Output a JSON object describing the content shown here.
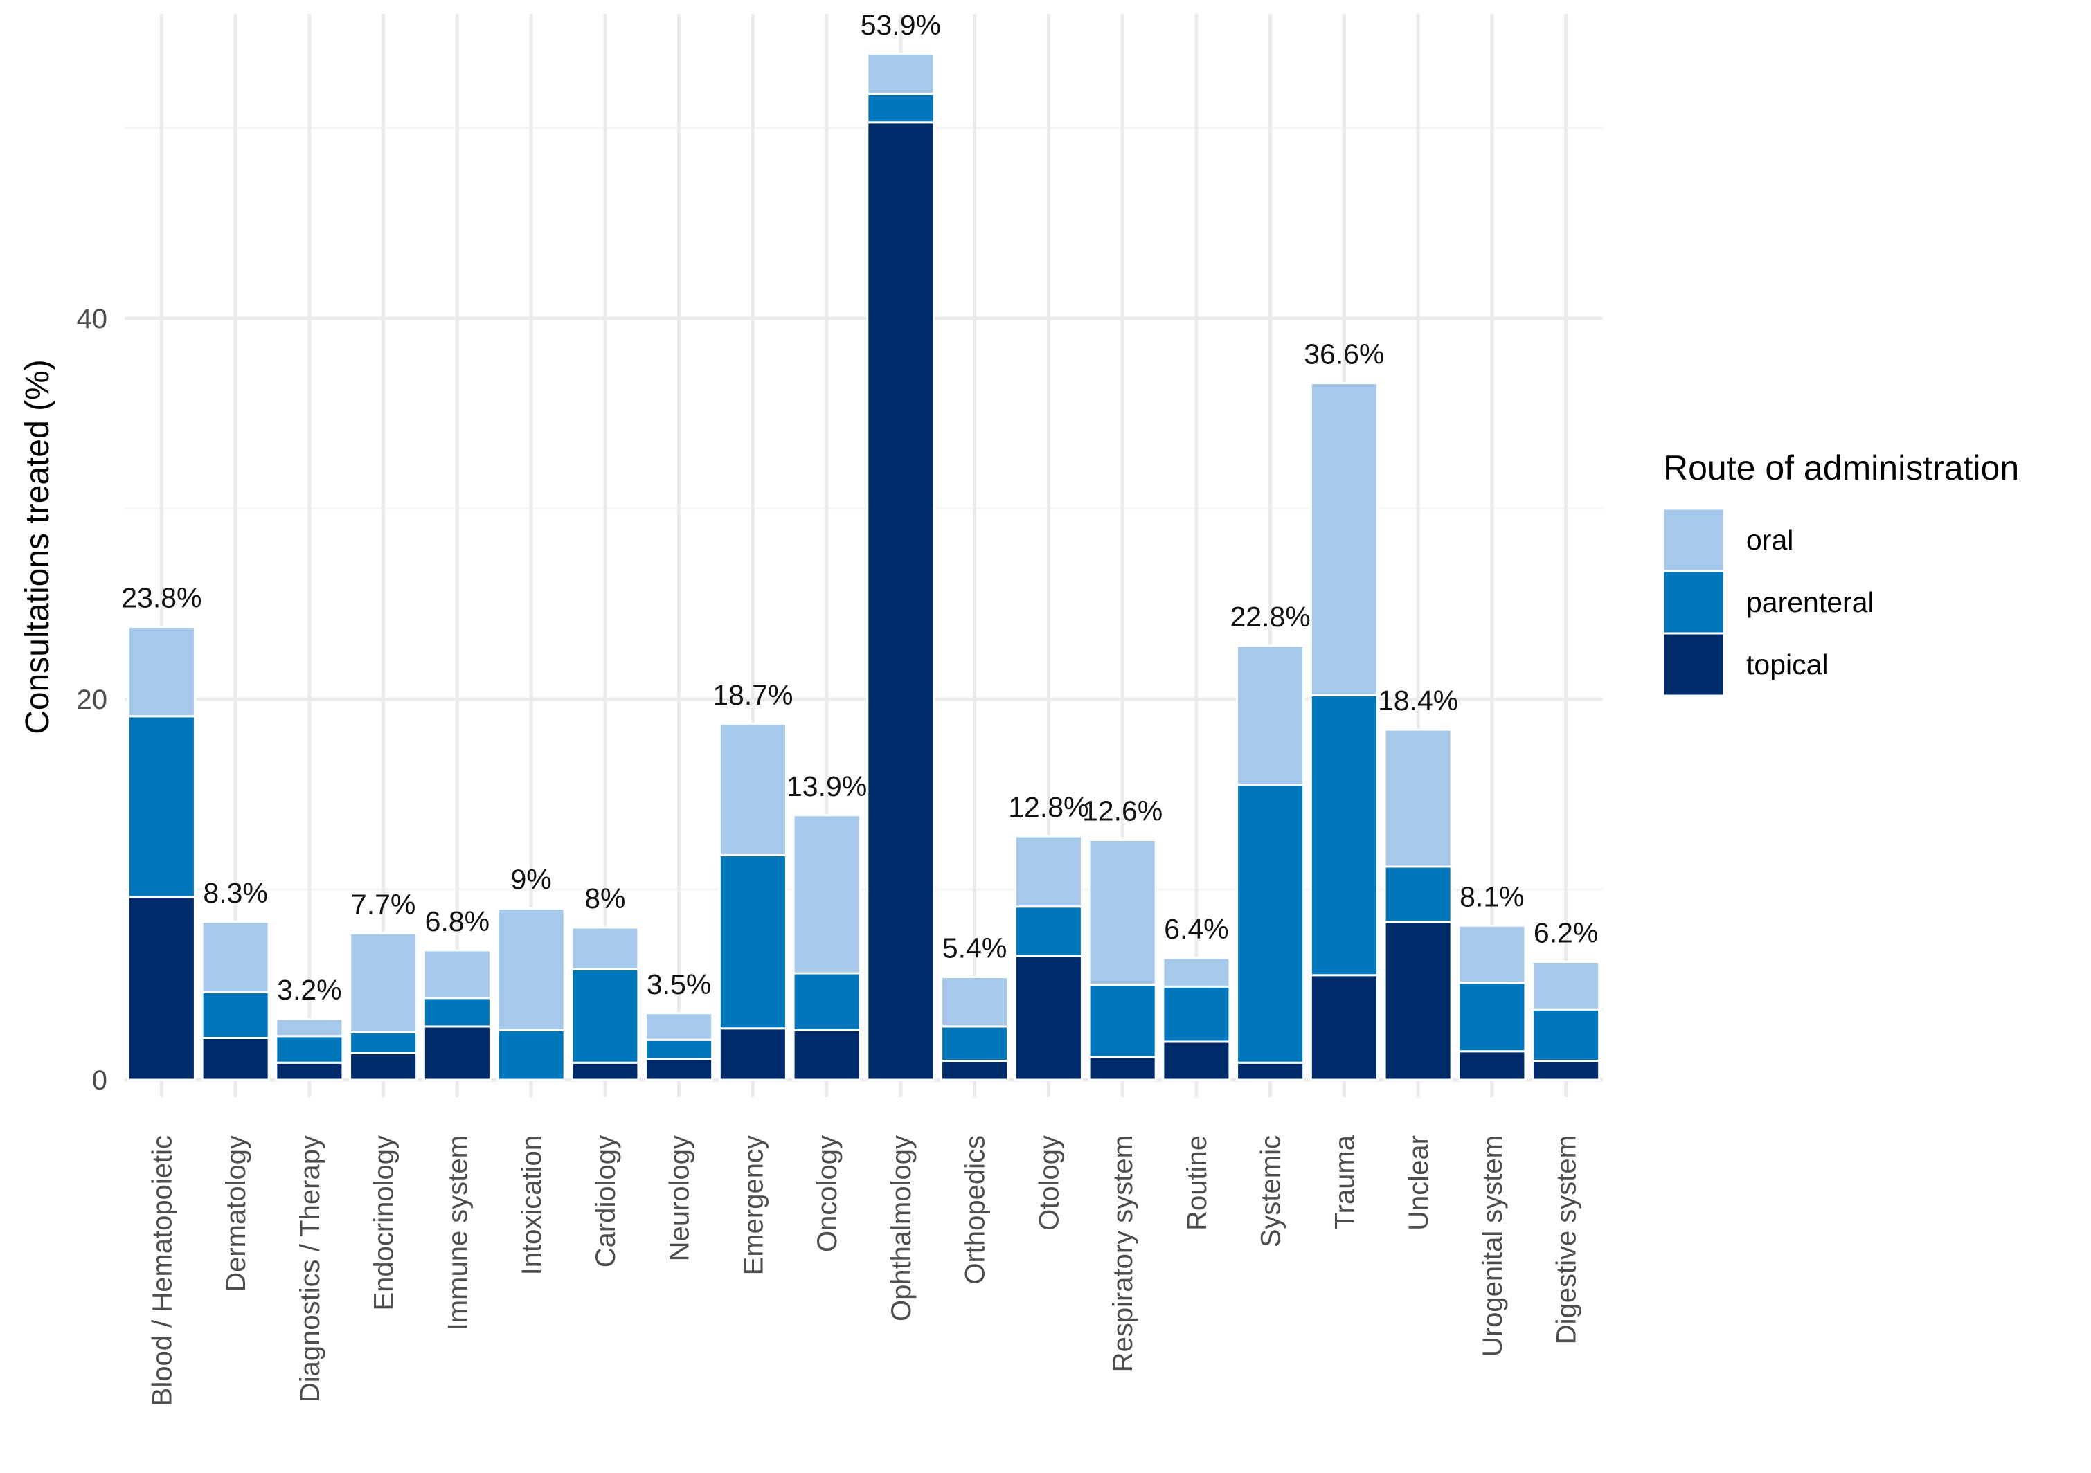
{
  "chart_data": {
    "type": "bar",
    "stacked": true,
    "title": "",
    "xlabel": "",
    "ylabel": "Consultations treated (%)",
    "ylim": [
      0,
      56
    ],
    "yticks": [
      0,
      20,
      40
    ],
    "grid": true,
    "legend_title": "Route of administration",
    "legend_position": "right",
    "categories": [
      "Blood / Hematopoietic",
      "Dermatology",
      "Diagnostics / Therapy",
      "Endocrinology",
      "Immune system",
      "Intoxication",
      "Cardiology",
      "Neurology",
      "Emergency",
      "Oncology",
      "Ophthalmology",
      "Orthopedics",
      "Otology",
      "Respiratory system",
      "Routine",
      "Systemic",
      "Trauma",
      "Unclear",
      "Urogenital system",
      "Digestive system"
    ],
    "series": [
      {
        "name": "topical",
        "color": "#002b6b",
        "values": [
          9.6,
          2.2,
          0.9,
          1.4,
          2.8,
          0.0,
          0.9,
          1.1,
          2.7,
          2.6,
          50.3,
          1.0,
          6.5,
          1.2,
          2.0,
          0.9,
          5.5,
          8.3,
          1.5,
          1.0
        ]
      },
      {
        "name": "parenteral",
        "color": "#0077ba",
        "values": [
          9.5,
          2.4,
          1.4,
          1.1,
          1.5,
          2.6,
          4.9,
          1.0,
          9.1,
          3.0,
          1.5,
          1.8,
          2.6,
          3.8,
          2.9,
          14.6,
          14.7,
          2.9,
          3.6,
          2.7
        ]
      },
      {
        "name": "oral",
        "color": "#a6c8ea",
        "values": [
          4.7,
          3.7,
          0.9,
          5.2,
          2.5,
          6.4,
          2.2,
          1.4,
          6.9,
          8.3,
          2.1,
          2.6,
          3.7,
          7.6,
          1.5,
          7.3,
          16.4,
          7.2,
          3.0,
          2.5
        ]
      }
    ],
    "total_labels": [
      "23.8%",
      "8.3%",
      "3.2%",
      "7.7%",
      "6.8%",
      "9%",
      "8%",
      "3.5%",
      "18.7%",
      "13.9%",
      "53.9%",
      "5.4%",
      "12.8%",
      "12.6%",
      "6.4%",
      "22.8%",
      "36.6%",
      "18.4%",
      "8.1%",
      "6.2%"
    ],
    "legend_order": [
      "oral",
      "parenteral",
      "topical"
    ]
  }
}
